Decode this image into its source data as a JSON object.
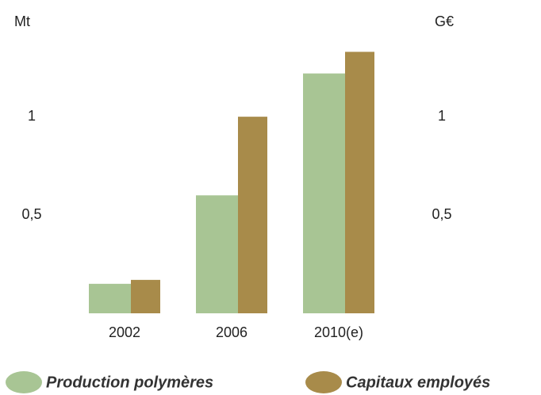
{
  "chart_data": {
    "type": "bar",
    "y_label": "Mt",
    "y2_label": "G€",
    "categories": [
      "2002",
      "2006",
      "2010(e)"
    ],
    "series": [
      {
        "name": "Production polymères",
        "color": "#a8c594",
        "values": [
          0.15,
          0.6,
          1.22
        ]
      },
      {
        "name": "Capitaux employés",
        "color": "#a88b4a",
        "values": [
          0.17,
          1.0,
          1.33
        ],
        "axis": "y2"
      }
    ],
    "ylim": [
      0,
      1.4
    ],
    "yticks": [
      {
        "value": 0.5,
        "label": "0,5"
      },
      1
    ],
    "y2lim": [
      0,
      1.4
    ],
    "y2ticks": [
      {
        "value": 0.5,
        "label": "0,5"
      },
      1
    ],
    "grid": false
  }
}
